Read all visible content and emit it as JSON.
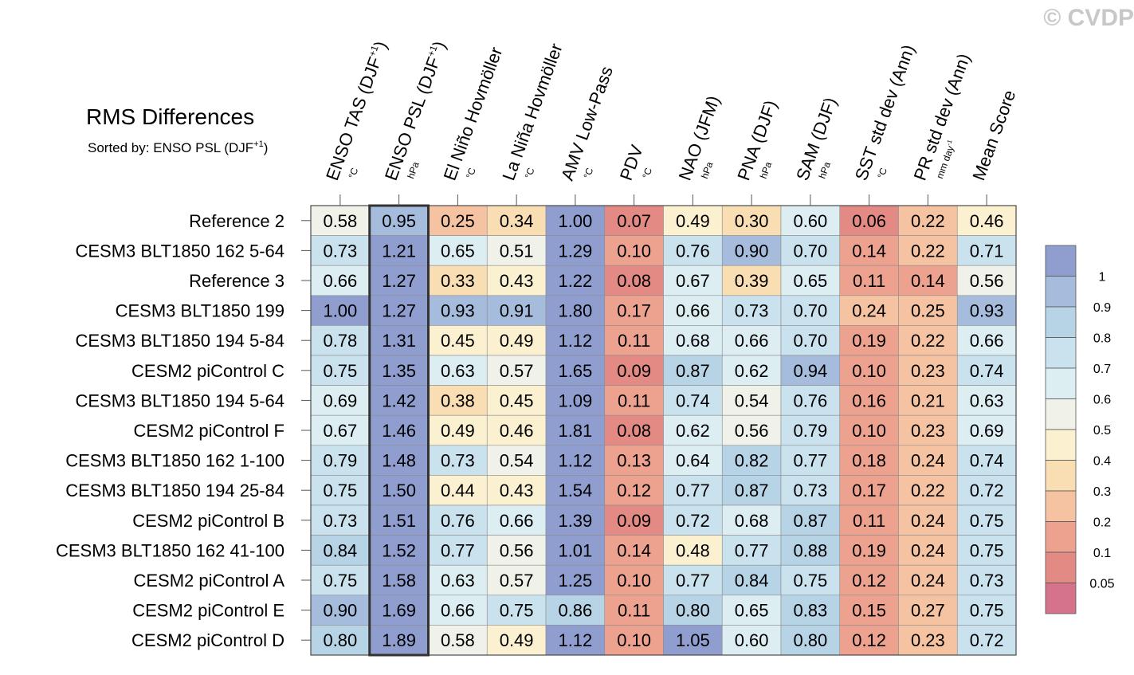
{
  "watermark": "© CVDP",
  "chart_data": {
    "type": "heatmap",
    "title": "RMS Differences",
    "subtitle": {
      "text": "Sorted by: ENSO PSL (DJF",
      "sup": "+1",
      "close": ")"
    },
    "highlighted_column": "ENSO PSL (DJF+1)",
    "columns": [
      {
        "label": "ENSO TAS (DJF",
        "sup": "+1",
        "close": ")",
        "unit": "°C"
      },
      {
        "label": "ENSO PSL (DJF",
        "sup": "+1",
        "close": ")",
        "unit": "hPa"
      },
      {
        "label": "El Niño Hovmöller",
        "unit": "°C"
      },
      {
        "label": "La Niña Hovmöller",
        "unit": "°C"
      },
      {
        "label": "AMV Low-Pass",
        "unit": "°C"
      },
      {
        "label": "PDV",
        "unit": "°C"
      },
      {
        "label": "NAO (JFM)",
        "unit": "hPa"
      },
      {
        "label": "PNA (DJF)",
        "unit": "hPa"
      },
      {
        "label": "SAM (DJF)",
        "unit": "hPa"
      },
      {
        "label": "SST std dev (Ann)",
        "unit": "°C"
      },
      {
        "label": "PR std dev (Ann)",
        "unit": "mm day",
        "unit_sup": "-1"
      },
      {
        "label": "Mean Score",
        "unit": ""
      }
    ],
    "rows": [
      {
        "label": "Reference 2",
        "values": [
          "0.58",
          "0.95",
          "0.25",
          "0.34",
          "1.00",
          "0.07",
          "0.49",
          "0.30",
          "0.60",
          "0.06",
          "0.22",
          "0.46"
        ]
      },
      {
        "label": "CESM3 BLT1850 162 5-64",
        "values": [
          "0.73",
          "1.21",
          "0.65",
          "0.51",
          "1.29",
          "0.10",
          "0.76",
          "0.90",
          "0.70",
          "0.14",
          "0.22",
          "0.71"
        ]
      },
      {
        "label": "Reference 3",
        "values": [
          "0.66",
          "1.27",
          "0.33",
          "0.43",
          "1.22",
          "0.08",
          "0.67",
          "0.39",
          "0.65",
          "0.11",
          "0.14",
          "0.56"
        ]
      },
      {
        "label": "CESM3 BLT1850 199",
        "values": [
          "1.00",
          "1.27",
          "0.93",
          "0.91",
          "1.80",
          "0.17",
          "0.66",
          "0.73",
          "0.70",
          "0.24",
          "0.25",
          "0.93"
        ]
      },
      {
        "label": "CESM3 BLT1850 194 5-84",
        "values": [
          "0.78",
          "1.31",
          "0.45",
          "0.49",
          "1.12",
          "0.11",
          "0.68",
          "0.66",
          "0.70",
          "0.19",
          "0.22",
          "0.66"
        ]
      },
      {
        "label": "CESM2 piControl C",
        "values": [
          "0.75",
          "1.35",
          "0.63",
          "0.57",
          "1.65",
          "0.09",
          "0.87",
          "0.62",
          "0.94",
          "0.10",
          "0.23",
          "0.74"
        ]
      },
      {
        "label": "CESM3 BLT1850 194 5-64",
        "values": [
          "0.69",
          "1.42",
          "0.38",
          "0.45",
          "1.09",
          "0.11",
          "0.74",
          "0.54",
          "0.76",
          "0.16",
          "0.21",
          "0.63"
        ]
      },
      {
        "label": "CESM2 piControl F",
        "values": [
          "0.67",
          "1.46",
          "0.49",
          "0.46",
          "1.81",
          "0.08",
          "0.62",
          "0.56",
          "0.79",
          "0.10",
          "0.23",
          "0.69"
        ]
      },
      {
        "label": "CESM3 BLT1850 162 1-100",
        "values": [
          "0.79",
          "1.48",
          "0.73",
          "0.54",
          "1.12",
          "0.13",
          "0.64",
          "0.82",
          "0.77",
          "0.18",
          "0.24",
          "0.74"
        ]
      },
      {
        "label": "CESM3 BLT1850 194 25-84",
        "values": [
          "0.75",
          "1.50",
          "0.44",
          "0.43",
          "1.54",
          "0.12",
          "0.77",
          "0.87",
          "0.73",
          "0.17",
          "0.22",
          "0.72"
        ]
      },
      {
        "label": "CESM2 piControl B",
        "values": [
          "0.73",
          "1.51",
          "0.76",
          "0.66",
          "1.39",
          "0.09",
          "0.72",
          "0.68",
          "0.87",
          "0.11",
          "0.24",
          "0.75"
        ]
      },
      {
        "label": "CESM3 BLT1850 162 41-100",
        "values": [
          "0.84",
          "1.52",
          "0.77",
          "0.56",
          "1.01",
          "0.14",
          "0.48",
          "0.77",
          "0.88",
          "0.19",
          "0.24",
          "0.75"
        ]
      },
      {
        "label": "CESM2 piControl A",
        "values": [
          "0.75",
          "1.58",
          "0.63",
          "0.57",
          "1.25",
          "0.10",
          "0.77",
          "0.84",
          "0.75",
          "0.12",
          "0.24",
          "0.73"
        ]
      },
      {
        "label": "CESM2 piControl E",
        "values": [
          "0.90",
          "1.69",
          "0.66",
          "0.75",
          "0.86",
          "0.11",
          "0.80",
          "0.65",
          "0.83",
          "0.15",
          "0.27",
          "0.75"
        ]
      },
      {
        "label": "CESM2 piControl D",
        "values": [
          "0.80",
          "1.89",
          "0.58",
          "0.49",
          "1.12",
          "0.10",
          "1.05",
          "0.60",
          "0.80",
          "0.12",
          "0.23",
          "0.72"
        ]
      }
    ],
    "colorbar": {
      "tick_labels": [
        "1",
        "0.9",
        "0.8",
        "0.7",
        "0.6",
        "0.5",
        "0.4",
        "0.3",
        "0.2",
        "0.1",
        "0.05"
      ],
      "levels": [
        1.0,
        0.9,
        0.8,
        0.7,
        0.6,
        0.5,
        0.4,
        0.3,
        0.2,
        0.1,
        0.05
      ],
      "colors": [
        "#8f9ecf",
        "#a6bcdd",
        "#b7d3e6",
        "#c9e2ee",
        "#ddeef3",
        "#f0f2ea",
        "#fbf1d1",
        "#f9ddb3",
        "#f6c3a2",
        "#eda18f",
        "#e38a85",
        "#d47389"
      ]
    }
  }
}
